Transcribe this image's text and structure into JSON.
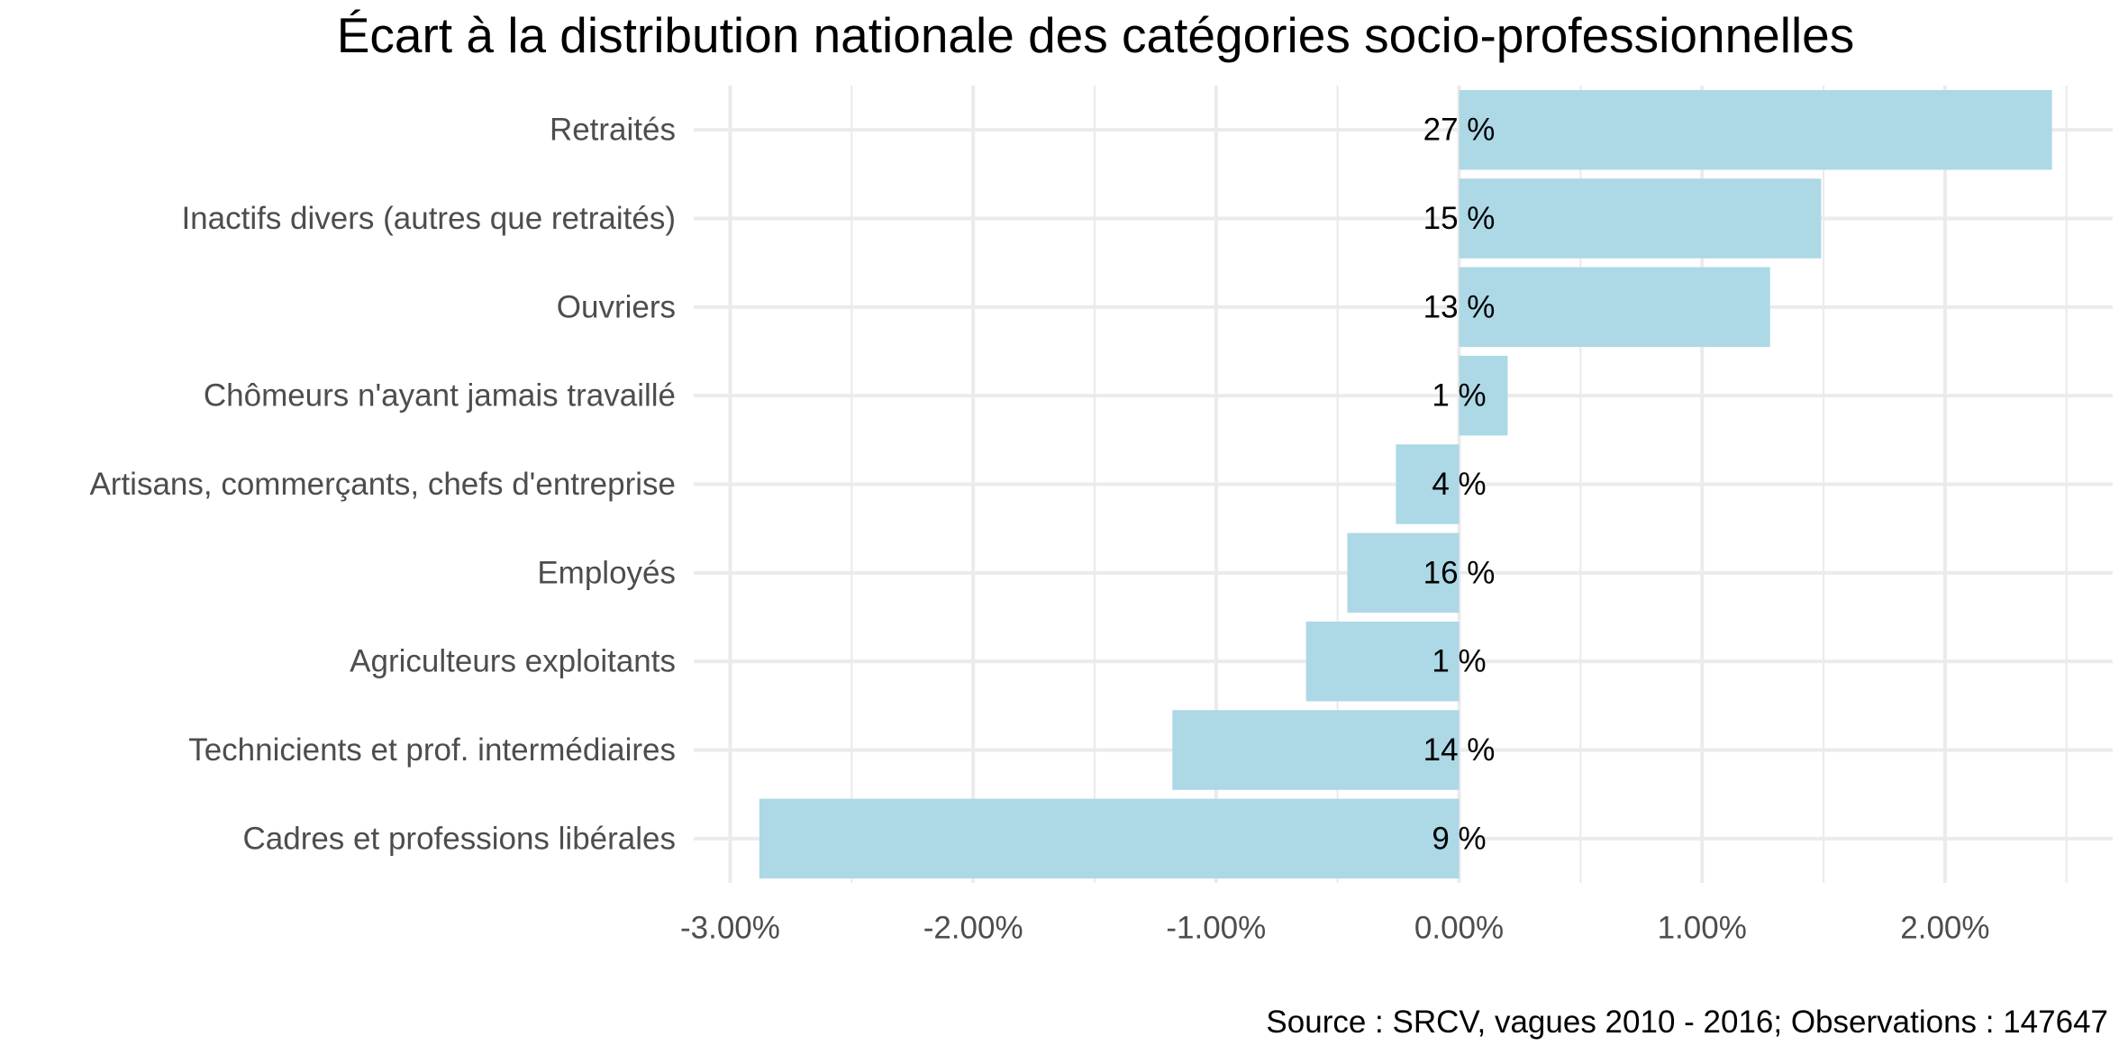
{
  "chart_data": {
    "type": "bar",
    "orientation": "horizontal",
    "title": "Écart à la distribution nationale des catégories socio-professionnelles",
    "caption": "Source : SRCV, vagues 2010 - 2016; Observations : 147647",
    "xlabel": "",
    "ylabel": "",
    "categories": [
      "Retraités",
      "Inactifs divers (autres que retraités)",
      "Ouvriers",
      "Chômeurs n'ayant jamais travaillé",
      "Artisans, commerçants, chefs d'entreprise",
      "Employés",
      "Agriculteurs exploitants",
      "Technicients et prof. intermédiaires",
      "Cadres et professions libérales"
    ],
    "values": [
      2.44,
      1.49,
      1.28,
      0.2,
      -0.26,
      -0.46,
      -0.63,
      -1.18,
      -2.88
    ],
    "value_labels": [
      "27 %",
      "15 %",
      "13 %",
      "1 %",
      "4 %",
      "16 %",
      "1 %",
      "14 %",
      "9 %"
    ],
    "x_ticks": [
      -3,
      -2,
      -1,
      0,
      1,
      2
    ],
    "x_tick_labels": [
      "-3.00%",
      "-2.00%",
      "-1.00%",
      "0.00%",
      "1.00%",
      "2.00%"
    ],
    "xlim": [
      -3.15,
      2.69
    ],
    "grid": true,
    "legend": "none",
    "bar_color": "#add8e6",
    "grid_color": "#ebebeb"
  }
}
